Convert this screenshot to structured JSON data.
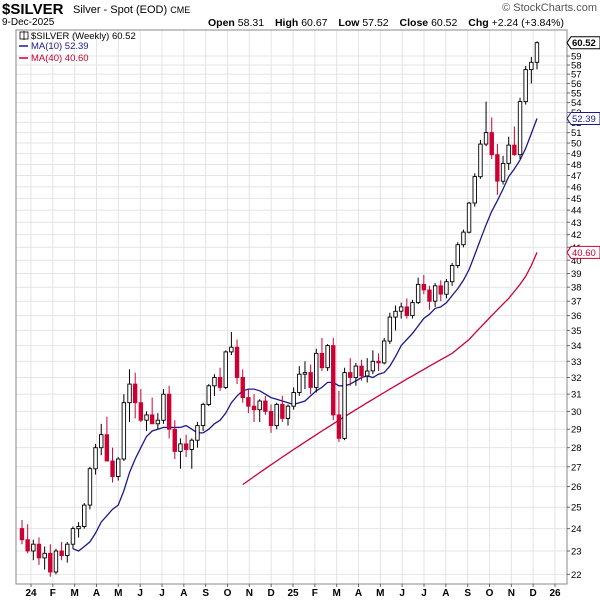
{
  "header": {
    "symbol": "$SILVER",
    "description": "Silver - Spot (EOD)",
    "exchange": "CME",
    "date": "9-Dec-2025",
    "brand": "© StockCharts.com",
    "open_label": "Open",
    "open": "58.31",
    "high_label": "High",
    "high": "60.67",
    "low_label": "Low",
    "low": "57.52",
    "close_label": "Close",
    "close": "60.52",
    "chg_label": "Chg",
    "chg": "+2.24 (+3.84%)"
  },
  "legend": {
    "price": "$SILVER (Weekly) 60.52",
    "ma10": "MA(10) 52.39",
    "ma40": "MA(40) 40.60"
  },
  "colors": {
    "up": "#000000",
    "down": "#cc0033",
    "ma10": "#1a1a8c",
    "ma40": "#cc0033",
    "grid": "#e4e4e4"
  },
  "chart_data": {
    "type": "candlestick",
    "title": "$SILVER Silver - Spot (EOD) CME",
    "scale": "log",
    "ylim": [
      21.6,
      62.0
    ],
    "y_ticks": [
      22,
      23,
      24,
      25,
      26,
      27,
      28,
      29,
      30,
      31,
      32,
      33,
      34,
      35,
      36,
      37,
      38,
      39,
      40,
      41,
      42,
      43,
      44,
      45,
      46,
      47,
      48,
      49,
      50,
      51,
      52,
      53,
      54,
      55,
      56,
      57,
      58,
      59
    ],
    "x_tick_labels": [
      "24",
      "F",
      "M",
      "A",
      "M",
      "J",
      "J",
      "A",
      "S",
      "O",
      "N",
      "D",
      "25",
      "F",
      "M",
      "A",
      "M",
      "J",
      "J",
      "A",
      "S",
      "O",
      "N",
      "D",
      "26"
    ],
    "last_price_labels": [
      {
        "label": "60.52",
        "value": 60.52,
        "series": "price"
      },
      {
        "label": "52.39",
        "value": 52.39,
        "series": "ma10"
      },
      {
        "label": "40.60",
        "value": 40.6,
        "series": "ma40"
      }
    ],
    "candles": [
      [
        24.0,
        24.4,
        23.3,
        23.5
      ],
      [
        23.5,
        24.2,
        22.9,
        23.0
      ],
      [
        23.0,
        23.5,
        22.6,
        23.3
      ],
      [
        23.3,
        23.6,
        22.4,
        22.7
      ],
      [
        22.7,
        23.2,
        22.2,
        22.9
      ],
      [
        22.9,
        23.3,
        21.9,
        22.1
      ],
      [
        22.1,
        23.1,
        22.0,
        23.0
      ],
      [
        23.0,
        23.4,
        22.6,
        22.8
      ],
      [
        22.8,
        23.4,
        22.5,
        23.3
      ],
      [
        23.3,
        24.1,
        23.1,
        24.0
      ],
      [
        24.0,
        24.3,
        23.6,
        24.1
      ],
      [
        24.1,
        25.2,
        24.0,
        25.1
      ],
      [
        25.1,
        27.0,
        24.9,
        26.9
      ],
      [
        26.9,
        28.2,
        26.6,
        28.0
      ],
      [
        28.0,
        29.3,
        27.6,
        28.7
      ],
      [
        28.7,
        29.7,
        27.3,
        27.3
      ],
      [
        27.3,
        28.0,
        26.2,
        26.5
      ],
      [
        26.5,
        27.5,
        26.3,
        27.4
      ],
      [
        27.4,
        31.0,
        27.3,
        30.5
      ],
      [
        30.5,
        32.5,
        29.4,
        31.6
      ],
      [
        31.6,
        32.3,
        29.6,
        30.5
      ],
      [
        30.5,
        31.3,
        29.4,
        29.5
      ],
      [
        29.5,
        30.0,
        28.9,
        29.8
      ],
      [
        29.8,
        30.8,
        29.5,
        29.3
      ],
      [
        29.3,
        29.9,
        29.0,
        29.5
      ],
      [
        29.5,
        31.3,
        29.3,
        31.0
      ],
      [
        31.0,
        31.5,
        28.5,
        29.0
      ],
      [
        29.0,
        29.5,
        27.4,
        27.8
      ],
      [
        27.8,
        28.5,
        26.9,
        28.2
      ],
      [
        28.2,
        28.7,
        27.5,
        27.9
      ],
      [
        27.9,
        28.5,
        26.9,
        28.4
      ],
      [
        28.4,
        29.4,
        28.0,
        29.2
      ],
      [
        29.2,
        30.5,
        28.9,
        30.4
      ],
      [
        30.4,
        31.6,
        30.3,
        31.5
      ],
      [
        31.5,
        32.2,
        30.9,
        32.0
      ],
      [
        32.0,
        32.6,
        31.2,
        31.4
      ],
      [
        31.4,
        33.7,
        31.3,
        33.6
      ],
      [
        33.6,
        34.9,
        33.4,
        33.9
      ],
      [
        33.9,
        34.4,
        31.6,
        32.0
      ],
      [
        32.0,
        32.5,
        30.5,
        30.8
      ],
      [
        30.8,
        31.3,
        29.9,
        30.3
      ],
      [
        30.3,
        31.0,
        29.4,
        30.1
      ],
      [
        30.1,
        30.7,
        29.4,
        30.6
      ],
      [
        30.6,
        30.9,
        29.8,
        30.0
      ],
      [
        30.0,
        30.4,
        28.8,
        29.2
      ],
      [
        29.2,
        30.5,
        29.0,
        30.4
      ],
      [
        30.4,
        30.9,
        29.4,
        29.6
      ],
      [
        29.6,
        30.4,
        29.2,
        30.3
      ],
      [
        30.3,
        31.4,
        30.1,
        31.1
      ],
      [
        31.1,
        32.7,
        30.9,
        32.2
      ],
      [
        32.2,
        33.0,
        31.3,
        32.3
      ],
      [
        32.3,
        32.8,
        31.0,
        31.4
      ],
      [
        31.4,
        33.8,
        31.1,
        33.5
      ],
      [
        33.5,
        34.5,
        32.4,
        32.6
      ],
      [
        32.6,
        34.1,
        32.4,
        34.0
      ],
      [
        34.0,
        34.5,
        29.5,
        29.8
      ],
      [
        29.8,
        31.2,
        28.3,
        28.5
      ],
      [
        28.5,
        32.6,
        28.4,
        32.3
      ],
      [
        32.3,
        33.2,
        31.5,
        32.0
      ],
      [
        32.0,
        32.9,
        31.5,
        32.7
      ],
      [
        32.7,
        33.1,
        31.8,
        32.1
      ],
      [
        32.1,
        33.2,
        31.7,
        32.4
      ],
      [
        32.4,
        33.7,
        32.2,
        33.0
      ],
      [
        33.0,
        33.5,
        32.4,
        32.9
      ],
      [
        32.9,
        34.5,
        32.8,
        34.3
      ],
      [
        34.3,
        36.2,
        34.1,
        35.9
      ],
      [
        35.9,
        36.7,
        35.0,
        36.3
      ],
      [
        36.3,
        36.9,
        35.8,
        36.6
      ],
      [
        36.6,
        37.2,
        35.8,
        36.0
      ],
      [
        36.0,
        37.1,
        35.8,
        36.9
      ],
      [
        36.9,
        38.7,
        36.8,
        38.2
      ],
      [
        38.2,
        38.9,
        37.5,
        37.8
      ],
      [
        37.8,
        38.1,
        36.4,
        37.0
      ],
      [
        37.0,
        38.3,
        36.6,
        38.1
      ],
      [
        38.1,
        38.5,
        37.0,
        37.5
      ],
      [
        37.5,
        38.6,
        37.2,
        38.4
      ],
      [
        38.4,
        39.8,
        38.1,
        39.6
      ],
      [
        39.6,
        41.4,
        39.4,
        41.2
      ],
      [
        41.2,
        42.4,
        41.0,
        42.2
      ],
      [
        42.2,
        44.7,
        42.1,
        44.6
      ],
      [
        44.6,
        47.2,
        44.3,
        46.9
      ],
      [
        46.9,
        50.3,
        46.7,
        49.9
      ],
      [
        49.9,
        54.1,
        49.7,
        51.0
      ],
      [
        51.0,
        52.5,
        48.5,
        48.9
      ],
      [
        48.9,
        49.9,
        45.3,
        46.5
      ],
      [
        46.5,
        48.8,
        46.2,
        48.1
      ],
      [
        48.1,
        50.6,
        47.5,
        49.8
      ],
      [
        49.8,
        51.6,
        48.8,
        48.9
      ],
      [
        48.9,
        54.5,
        48.5,
        54.1
      ],
      [
        54.1,
        57.9,
        53.8,
        57.5
      ],
      [
        57.5,
        58.9,
        56.0,
        58.3
      ],
      [
        58.3,
        60.67,
        57.52,
        60.52
      ]
    ],
    "ma10": [
      null,
      null,
      null,
      null,
      null,
      null,
      null,
      null,
      null,
      23.1,
      23.0,
      23.2,
      23.4,
      23.8,
      24.3,
      24.6,
      24.9,
      25.1,
      25.8,
      26.7,
      27.4,
      28.0,
      28.6,
      28.9,
      29.0,
      29.1,
      29.1,
      29.1,
      29.1,
      29.2,
      29.0,
      28.8,
      28.8,
      29.0,
      29.3,
      29.5,
      29.9,
      30.5,
      30.9,
      31.2,
      31.3,
      31.3,
      31.2,
      31.0,
      30.8,
      30.7,
      30.6,
      30.5,
      30.4,
      30.5,
      30.6,
      30.9,
      31.2,
      31.4,
      31.7,
      31.7,
      31.5,
      31.5,
      31.6,
      31.8,
      32.0,
      32.1,
      32.0,
      32.2,
      32.3,
      32.7,
      33.3,
      34.0,
      34.4,
      34.8,
      35.3,
      35.8,
      36.1,
      36.5,
      36.6,
      36.9,
      37.4,
      37.9,
      38.5,
      39.3,
      40.4,
      41.6,
      42.8,
      43.9,
      44.8,
      45.8,
      46.9,
      47.6,
      48.4,
      49.5,
      50.9,
      52.39
    ],
    "ma40": [
      null,
      null,
      null,
      null,
      null,
      null,
      null,
      null,
      null,
      null,
      null,
      null,
      null,
      null,
      null,
      null,
      null,
      null,
      null,
      null,
      null,
      null,
      null,
      null,
      null,
      null,
      null,
      null,
      null,
      null,
      null,
      null,
      null,
      null,
      null,
      null,
      null,
      null,
      null,
      26.1,
      26.3,
      26.5,
      26.7,
      26.9,
      27.1,
      27.3,
      27.5,
      27.7,
      27.9,
      28.1,
      28.3,
      28.5,
      28.7,
      28.9,
      29.1,
      29.3,
      29.5,
      29.7,
      29.9,
      30.1,
      30.3,
      30.5,
      30.7,
      30.9,
      31.1,
      31.3,
      31.5,
      31.7,
      31.9,
      32.1,
      32.3,
      32.5,
      32.7,
      32.9,
      33.1,
      33.3,
      33.5,
      33.8,
      34.1,
      34.4,
      34.8,
      35.2,
      35.6,
      36.0,
      36.4,
      36.8,
      37.2,
      37.7,
      38.2,
      38.8,
      39.6,
      40.6
    ]
  }
}
